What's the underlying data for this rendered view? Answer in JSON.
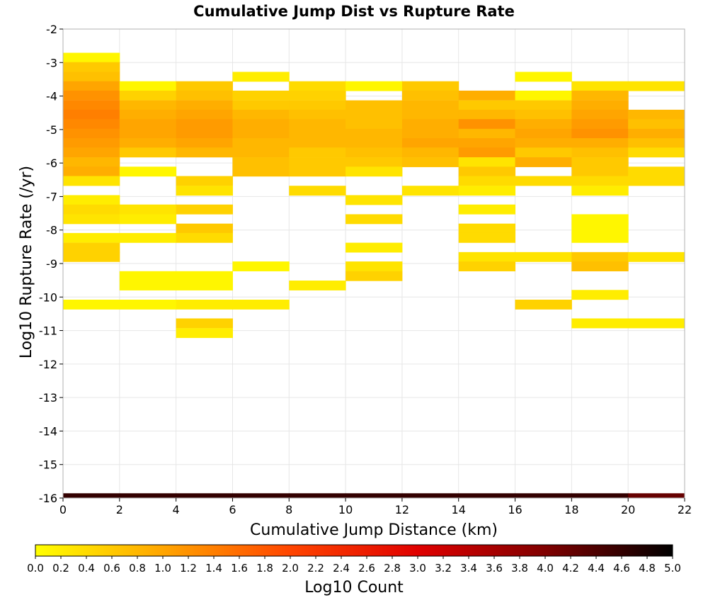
{
  "chart_data": {
    "type": "heatmap",
    "title": "Cumulative Jump Dist vs Rupture Rate",
    "xlabel": "Cumulative Jump Distance (km)",
    "ylabel": "Log10 Rupture Rate (/yr)",
    "xlim": [
      0,
      22
    ],
    "ylim": [
      -16,
      -2
    ],
    "x_ticks": [
      "0",
      "2",
      "4",
      "6",
      "8",
      "10",
      "12",
      "14",
      "16",
      "18",
      "20",
      "22"
    ],
    "y_ticks": [
      "-2",
      "-3",
      "-4",
      "-5",
      "-6",
      "-7",
      "-8",
      "-9",
      "-10",
      "-11",
      "-12",
      "-13",
      "-14",
      "-15",
      "-16"
    ],
    "grid": true,
    "x_bin_width": 2,
    "y_bin_height": 0.2833,
    "colorbar": {
      "label": "Log10 Count",
      "range": [
        0,
        5
      ],
      "ticks": [
        "0.0",
        "0.2",
        "0.4",
        "0.6",
        "0.8",
        "1.0",
        "1.2",
        "1.4",
        "1.6",
        "1.8",
        "2.0",
        "2.2",
        "2.4",
        "2.6",
        "2.8",
        "3.0",
        "3.2",
        "3.4",
        "3.6",
        "3.8",
        "4.0",
        "4.2",
        "4.4",
        "4.6",
        "4.8",
        "5.0"
      ],
      "colors": [
        "#ffff00",
        "#ffa500",
        "#ff4500",
        "#e00000",
        "#800000",
        "#000000"
      ]
    },
    "columns": [
      {
        "x_start": 0,
        "cells": [
          [
            -2.85,
            0.1
          ],
          [
            -3.13,
            0.6
          ],
          [
            -3.42,
            0.7
          ],
          [
            -3.7,
            1.0
          ],
          [
            -3.98,
            1.2
          ],
          [
            -4.27,
            1.3
          ],
          [
            -4.55,
            1.4
          ],
          [
            -4.83,
            1.3
          ],
          [
            -5.12,
            1.2
          ],
          [
            -5.4,
            1.1
          ],
          [
            -5.68,
            1.0
          ],
          [
            -5.97,
            0.8
          ],
          [
            -6.25,
            0.9
          ],
          [
            -6.53,
            0.3
          ],
          [
            -7.1,
            0.2
          ],
          [
            -7.38,
            0.4
          ],
          [
            -7.67,
            0.3
          ],
          [
            -8.23,
            0.2
          ],
          [
            -8.52,
            0.5
          ],
          [
            -8.8,
            0.5
          ],
          [
            -10.22,
            0.1
          ],
          [
            -16.0,
            4.6
          ]
        ]
      },
      {
        "x_start": 2,
        "cells": [
          [
            -3.7,
            0.1
          ],
          [
            -3.98,
            0.5
          ],
          [
            -4.27,
            0.8
          ],
          [
            -4.55,
            0.9
          ],
          [
            -4.83,
            1.0
          ],
          [
            -5.12,
            1.0
          ],
          [
            -5.4,
            0.9
          ],
          [
            -5.68,
            0.6
          ],
          [
            -6.25,
            0.1
          ],
          [
            -7.38,
            0.3
          ],
          [
            -7.67,
            0.2
          ],
          [
            -8.23,
            0.2
          ],
          [
            -9.37,
            0.1
          ],
          [
            -9.65,
            0.1
          ],
          [
            -10.22,
            0.1
          ],
          [
            -16.0,
            4.6
          ]
        ]
      },
      {
        "x_start": 4,
        "cells": [
          [
            -3.7,
            0.6
          ],
          [
            -3.98,
            0.7
          ],
          [
            -4.27,
            0.9
          ],
          [
            -4.55,
            1.0
          ],
          [
            -4.83,
            1.1
          ],
          [
            -5.12,
            1.1
          ],
          [
            -5.4,
            1.0
          ],
          [
            -5.68,
            0.8
          ],
          [
            -6.53,
            0.5
          ],
          [
            -6.82,
            0.3
          ],
          [
            -7.38,
            0.5
          ],
          [
            -7.95,
            0.6
          ],
          [
            -8.23,
            0.4
          ],
          [
            -9.37,
            0.1
          ],
          [
            -9.65,
            0.1
          ],
          [
            -10.22,
            0.2
          ],
          [
            -10.78,
            0.5
          ],
          [
            -11.07,
            0.2
          ],
          [
            -16.0,
            4.6
          ]
        ]
      },
      {
        "x_start": 6,
        "cells": [
          [
            -3.42,
            0.2
          ],
          [
            -3.98,
            0.5
          ],
          [
            -4.27,
            0.6
          ],
          [
            -4.55,
            0.8
          ],
          [
            -4.83,
            0.9
          ],
          [
            -5.12,
            0.9
          ],
          [
            -5.4,
            0.8
          ],
          [
            -5.68,
            0.8
          ],
          [
            -5.97,
            0.7
          ],
          [
            -6.25,
            0.7
          ],
          [
            -9.08,
            0.1
          ],
          [
            -10.22,
            0.2
          ],
          [
            -16.0,
            4.6
          ]
        ]
      },
      {
        "x_start": 8,
        "cells": [
          [
            -3.7,
            0.4
          ],
          [
            -3.98,
            0.5
          ],
          [
            -4.27,
            0.6
          ],
          [
            -4.55,
            0.7
          ],
          [
            -4.83,
            0.8
          ],
          [
            -5.12,
            0.8
          ],
          [
            -5.4,
            0.8
          ],
          [
            -5.68,
            0.6
          ],
          [
            -5.97,
            0.6
          ],
          [
            -6.25,
            0.6
          ],
          [
            -6.82,
            0.4
          ],
          [
            -9.65,
            0.2
          ],
          [
            -16.0,
            4.6
          ]
        ]
      },
      {
        "x_start": 10,
        "cells": [
          [
            -3.7,
            0.1
          ],
          [
            -4.27,
            0.7
          ],
          [
            -4.55,
            0.7
          ],
          [
            -4.83,
            0.7
          ],
          [
            -5.12,
            0.8
          ],
          [
            -5.4,
            0.8
          ],
          [
            -5.68,
            0.7
          ],
          [
            -5.97,
            0.6
          ],
          [
            -6.25,
            0.3
          ],
          [
            -7.1,
            0.3
          ],
          [
            -7.67,
            0.4
          ],
          [
            -8.52,
            0.2
          ],
          [
            -9.08,
            0.3
          ],
          [
            -9.37,
            0.5
          ],
          [
            -16.0,
            4.6
          ]
        ]
      },
      {
        "x_start": 12,
        "cells": [
          [
            -3.7,
            0.6
          ],
          [
            -3.98,
            0.7
          ],
          [
            -4.27,
            0.8
          ],
          [
            -4.55,
            0.8
          ],
          [
            -4.83,
            0.9
          ],
          [
            -5.12,
            0.9
          ],
          [
            -5.4,
            1.0
          ],
          [
            -5.68,
            0.8
          ],
          [
            -5.97,
            0.7
          ],
          [
            -6.82,
            0.3
          ],
          [
            -16.0,
            4.6
          ]
        ]
      },
      {
        "x_start": 14,
        "cells": [
          [
            -3.98,
            0.9
          ],
          [
            -4.27,
            0.6
          ],
          [
            -4.55,
            0.8
          ],
          [
            -4.83,
            1.2
          ],
          [
            -5.12,
            0.8
          ],
          [
            -5.4,
            1.0
          ],
          [
            -5.68,
            1.1
          ],
          [
            -5.97,
            0.3
          ],
          [
            -6.25,
            0.6
          ],
          [
            -6.53,
            0.4
          ],
          [
            -6.82,
            0.2
          ],
          [
            -7.38,
            0.2
          ],
          [
            -7.95,
            0.4
          ],
          [
            -8.23,
            0.4
          ],
          [
            -8.8,
            0.3
          ],
          [
            -9.08,
            0.5
          ],
          [
            -16.0,
            4.6
          ]
        ]
      },
      {
        "x_start": 16,
        "cells": [
          [
            -3.42,
            0.1
          ],
          [
            -3.98,
            0.1
          ],
          [
            -4.27,
            0.6
          ],
          [
            -4.55,
            0.7
          ],
          [
            -4.83,
            0.9
          ],
          [
            -5.12,
            1.0
          ],
          [
            -5.4,
            0.9
          ],
          [
            -5.68,
            0.6
          ],
          [
            -5.97,
            0.9
          ],
          [
            -6.53,
            0.4
          ],
          [
            -8.8,
            0.3
          ],
          [
            -10.22,
            0.5
          ],
          [
            -16.0,
            4.6
          ]
        ]
      },
      {
        "x_start": 18,
        "cells": [
          [
            -3.7,
            0.3
          ],
          [
            -3.98,
            0.8
          ],
          [
            -4.27,
            0.9
          ],
          [
            -4.55,
            1.0
          ],
          [
            -4.83,
            1.1
          ],
          [
            -5.12,
            1.2
          ],
          [
            -5.4,
            0.9
          ],
          [
            -5.68,
            0.7
          ],
          [
            -5.97,
            0.6
          ],
          [
            -6.25,
            0.6
          ],
          [
            -6.53,
            0.4
          ],
          [
            -6.82,
            0.2
          ],
          [
            -7.67,
            0.1
          ],
          [
            -7.95,
            0.1
          ],
          [
            -8.23,
            0.1
          ],
          [
            -8.8,
            0.6
          ],
          [
            -9.08,
            0.7
          ],
          [
            -9.93,
            0.2
          ],
          [
            -10.78,
            0.2
          ],
          [
            -16.0,
            4.6
          ]
        ]
      },
      {
        "x_start": 20,
        "cells": [
          [
            -3.7,
            0.3
          ],
          [
            -4.55,
            0.8
          ],
          [
            -4.83,
            0.7
          ],
          [
            -5.12,
            0.9
          ],
          [
            -5.4,
            0.7
          ],
          [
            -5.68,
            0.4
          ],
          [
            -6.25,
            0.4
          ],
          [
            -6.53,
            0.4
          ],
          [
            -8.8,
            0.3
          ],
          [
            -10.78,
            0.2
          ],
          [
            -16.0,
            4.2
          ]
        ]
      }
    ]
  }
}
